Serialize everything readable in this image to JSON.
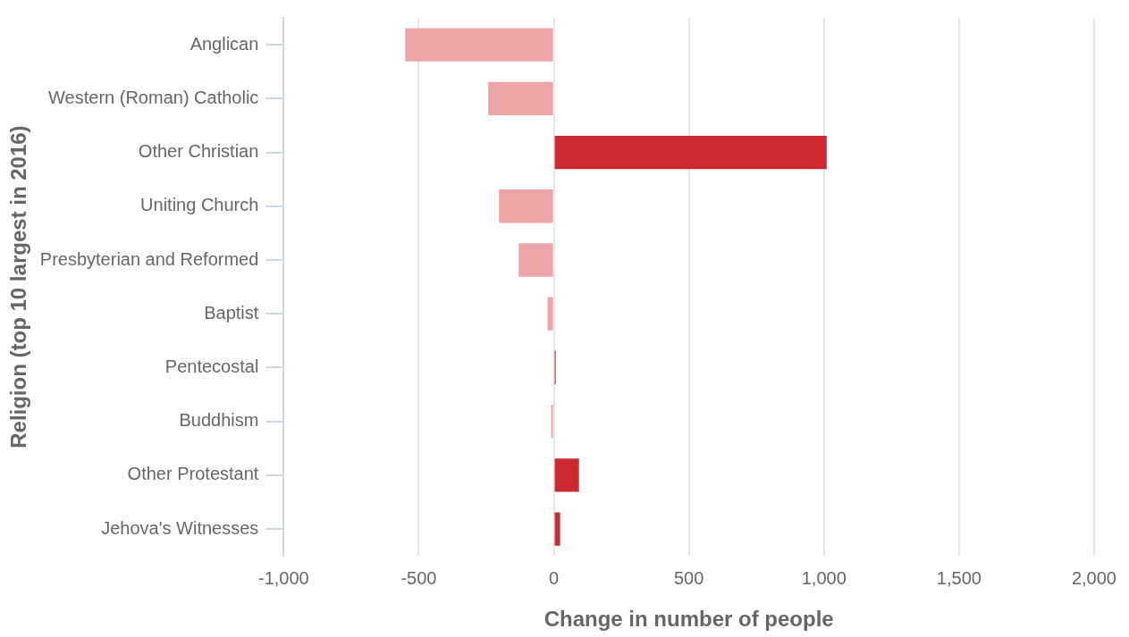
{
  "chart_data": {
    "type": "bar",
    "orientation": "horizontal",
    "xlabel": "Change in number of people",
    "ylabel": "Religion (top 10 largest in 2016)",
    "categories": [
      "Anglican",
      "Western (Roman) Catholic",
      "Other Christian",
      "Uniting Church",
      "Presbyterian and Reformed",
      "Baptist",
      "Pentecostal",
      "Buddhism",
      "Other Protestant",
      "Jehova's Witnesses"
    ],
    "values": [
      -550,
      -243,
      1010,
      -203,
      -130,
      -23,
      7,
      -10,
      93,
      23
    ],
    "colors": [
      "#eba5a7",
      "#eba5a7",
      "#cc2a30",
      "#eba5a7",
      "#eba5a7",
      "#eba5a7",
      "#cc2a30",
      "#eba5a7",
      "#cc2a30",
      "#cc2a30"
    ],
    "xlim": [
      -1000,
      2000
    ],
    "xticks": [
      {
        "value": -1000,
        "label": "-1,000"
      },
      -500,
      0,
      500,
      {
        "value": 1000,
        "label": "1,000"
      },
      {
        "value": 1500,
        "label": "1,500"
      },
      {
        "value": 2000,
        "label": "2,000"
      }
    ],
    "grid": "x",
    "legend": false
  }
}
